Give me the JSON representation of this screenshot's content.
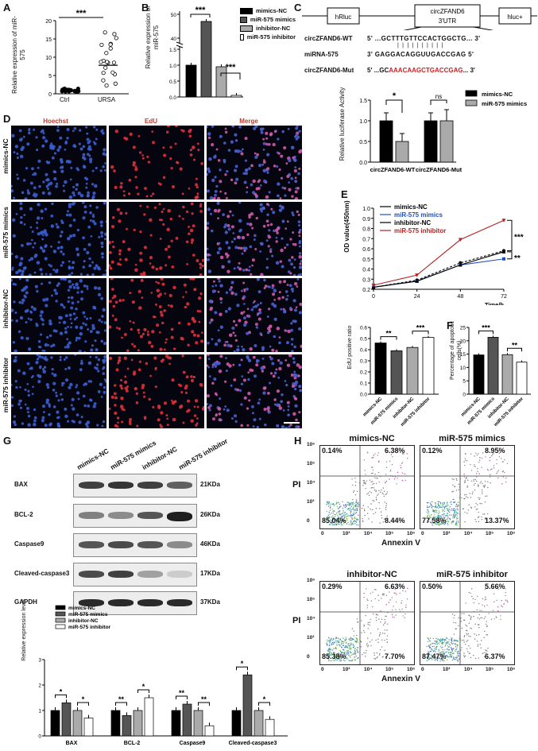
{
  "panels": {
    "A": "A",
    "B": "B",
    "C": "C",
    "D": "D",
    "E": "E",
    "F": "F",
    "G": "G",
    "H": "H"
  },
  "groups": [
    "mimics-NC",
    "miR-575 mimics",
    "inhibitor-NC",
    "miR-575 inhibitor"
  ],
  "colors": {
    "mimics_nc": "#000000",
    "mimics": "#555555",
    "inhibitor_nc": "#aaaaaa",
    "inhibitor": "#ffffff",
    "red": "#c0392b",
    "blue": "#1f4fbf",
    "redline": "#b22222"
  },
  "panelA": {
    "ylabel": "Relative expression of miR-575",
    "categories": [
      "Ctrl",
      "URSA"
    ],
    "significance": "***",
    "yticks": [
      "0",
      "5",
      "10",
      "15",
      "20"
    ],
    "chart_data": {
      "type": "scatter",
      "categories": [
        "Ctrl",
        "URSA"
      ],
      "means": [
        1.0,
        7.8
      ],
      "ylim": [
        0,
        20
      ]
    }
  },
  "panelB": {
    "ylabel": "Relative expression of miR-575",
    "sig1": "***",
    "sig2": "***",
    "yticks": [
      "0.0",
      "0.5",
      "1.0",
      "1.5",
      "40",
      "50"
    ],
    "legend": [
      "mimics-NC",
      "miR-575 mimics",
      "inhibitor-NC",
      "miR-575 inhibitor"
    ],
    "chart_data": {
      "type": "bar",
      "categories": [
        "mimics-NC",
        "miR-575 mimics",
        "inhibitor-NC",
        "miR-575 inhibitor"
      ],
      "values": [
        1.0,
        47,
        0.95,
        0.05
      ]
    }
  },
  "panelC": {
    "hrluc": "hRluc",
    "circ_line1": "circZFAND6",
    "circ_line2": "3'UTR",
    "hluc": "hluc+",
    "wt_name": "circZFAND6-WT",
    "wt_seq": "5'  ...GCTTTGTTCCACTGGCTG...  3'",
    "mir_name": "miRNA-575",
    "mir_seq": "3'  GAGGACAGGUUGACCGAG  5'",
    "mut_name": "circZFAND6-Mut",
    "mut_prefix": "5'  ...GC",
    "mut_red": "AAACAAGCTGACCGAG",
    "mut_suffix": "...  3'",
    "legend": [
      "mimics-NC",
      "miR-575 mimics"
    ],
    "ylabel": "Relative luciferase Activity",
    "xcats": [
      "circZFAND6-WT",
      "circZFAND6-Mut"
    ],
    "sig1": "*",
    "sig2": "ns",
    "yticks": [
      "0.0",
      "0.5",
      "1.0",
      "1.5"
    ],
    "chart_data": {
      "type": "bar",
      "categories": [
        "circZFAND6-WT",
        "circZFAND6-Mut"
      ],
      "series": [
        {
          "name": "mimics-NC",
          "values": [
            1.0,
            1.0
          ]
        },
        {
          "name": "miR-575 mimics",
          "values": [
            0.5,
            1.0
          ]
        }
      ],
      "ylim": [
        0,
        1.5
      ]
    }
  },
  "panelD": {
    "cols": [
      "Hoechst",
      "EdU",
      "Merge"
    ],
    "rows": [
      "mimics-NC",
      "miR-575 mimics",
      "inhibitor-NC",
      "miR-575 inhibitor"
    ]
  },
  "panelE": {
    "ylabel": "OD value(450nm)",
    "xlabel": "Time/h",
    "xticks": [
      "0",
      "24",
      "48",
      "72"
    ],
    "yticks": [
      "0.2",
      "0.3",
      "0.4",
      "0.5",
      "0.6",
      "0.7",
      "0.8",
      "0.9",
      "1.0"
    ],
    "sig1": "***",
    "sig2": "**",
    "legend": [
      "mimics-NC",
      "miR-575 mimics",
      "inhibitor-NC",
      "miR-575 inhibitor"
    ],
    "chart_data": {
      "type": "line",
      "x": [
        0,
        24,
        48,
        72
      ],
      "series": [
        {
          "name": "mimics-NC",
          "values": [
            0.22,
            0.29,
            0.46,
            0.58
          ]
        },
        {
          "name": "miR-575 mimics",
          "values": [
            0.22,
            0.28,
            0.44,
            0.5
          ]
        },
        {
          "name": "inhibitor-NC",
          "values": [
            0.22,
            0.28,
            0.44,
            0.57
          ]
        },
        {
          "name": "miR-575 inhibitor",
          "values": [
            0.24,
            0.34,
            0.69,
            0.88
          ]
        }
      ],
      "ylim": [
        0.2,
        1.0
      ]
    }
  },
  "panelEdU": {
    "ylabel": "EdU positive ratio",
    "yticks": [
      "0.0",
      "0.1",
      "0.2",
      "0.3",
      "0.4",
      "0.5",
      "0.6"
    ],
    "sig1": "**",
    "sig2": "***",
    "chart_data": {
      "type": "bar",
      "categories": [
        "mimics-NC",
        "miR-575 mimics",
        "inhibitor-NC",
        "miR-575 inhibitor"
      ],
      "values": [
        0.46,
        0.39,
        0.42,
        0.51
      ],
      "ylim": [
        0,
        0.6
      ]
    }
  },
  "panelF": {
    "ylabel": "Percentage of apoptotic cells(%)",
    "yticks": [
      "0",
      "5",
      "10",
      "15",
      "20",
      "25"
    ],
    "sig1": "***",
    "sig2": "**",
    "chart_data": {
      "type": "bar",
      "categories": [
        "mimics-NC",
        "miR-575 mimics",
        "inhibitor-NC",
        "miR-575 inhibitor"
      ],
      "values": [
        14.7,
        21.3,
        14.8,
        12.0
      ],
      "ylim": [
        0,
        25
      ]
    }
  },
  "panelG": {
    "blots": [
      {
        "name": "BAX",
        "size": "21KDa"
      },
      {
        "name": "BCL-2",
        "size": "26KDa"
      },
      {
        "name": "Caspase9",
        "size": "46KDa"
      },
      {
        "name": "Cleaved-caspase3",
        "size": "17KDa"
      },
      {
        "name": "GAPDH",
        "size": "37KDa"
      }
    ],
    "bar_ylabel": "Relative expression level",
    "yticks": [
      "0",
      "1",
      "2",
      "3"
    ],
    "legend": [
      "mimics-NC",
      "miR-575 mimics",
      "inhibitor-NC",
      "miR-575 inhibitor"
    ],
    "chart_data": {
      "type": "bar",
      "categories": [
        "BAX",
        "BCL-2",
        "Caspase9",
        "Cleaved-caspase3"
      ],
      "series": [
        {
          "name": "mimics-NC",
          "values": [
            1.0,
            1.0,
            1.0,
            1.0
          ]
        },
        {
          "name": "miR-575 mimics",
          "values": [
            1.3,
            0.8,
            1.25,
            2.4
          ]
        },
        {
          "name": "inhibitor-NC",
          "values": [
            1.0,
            1.0,
            1.0,
            1.0
          ]
        },
        {
          "name": "miR-575 inhibitor",
          "values": [
            0.7,
            1.5,
            0.4,
            0.65
          ]
        }
      ],
      "ylim": [
        0,
        3
      ],
      "sig_pairs": [
        [
          "*",
          "*"
        ],
        [
          "**",
          "*"
        ],
        [
          "**",
          "**"
        ],
        [
          "*",
          "*"
        ]
      ]
    }
  },
  "panelH": {
    "plots": [
      {
        "title": "mimics-NC",
        "ul": "0.14%",
        "ur": "6.38%",
        "ll": "85.04%",
        "lr": "8.44%"
      },
      {
        "title": "miR-575 mimics",
        "ul": "0.12%",
        "ur": "8.95%",
        "ll": "77.58%",
        "lr": "13.37%"
      },
      {
        "title": "inhibitor-NC",
        "ul": "0.29%",
        "ur": "6.63%",
        "ll": "85.38%",
        "lr": "7.70%"
      },
      {
        "title": "miR-575 inhibitor",
        "ul": "0.50%",
        "ur": "5.66%",
        "ll": "87.47%",
        "lr": "6.37%"
      }
    ],
    "ylabel": "PI",
    "xlabel": "Annexin V",
    "yticks": [
      "10⁶",
      "10⁵",
      "10⁴",
      "10³",
      "0"
    ],
    "xticks": [
      "0",
      "10³",
      "10⁴",
      "10⁵",
      "10⁶"
    ]
  }
}
